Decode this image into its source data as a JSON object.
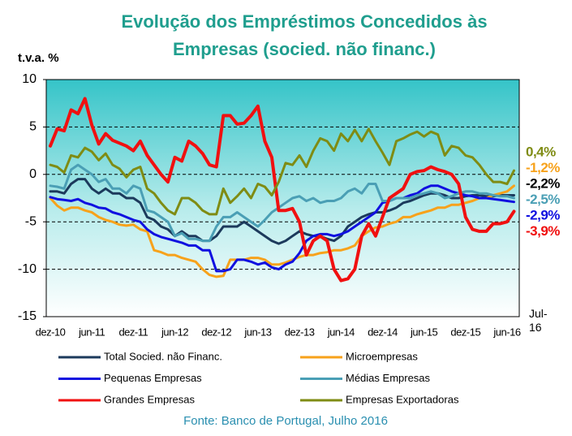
{
  "chart_data": {
    "type": "line",
    "title": [
      "Evolução dos Empréstimos Concedidos às",
      "Empresas (socied. não financ.)"
    ],
    "y_label": "t.v.a. %",
    "source": "Fonte: Banco de Portugal,  Julho 2016",
    "categories": [
      "dez-10",
      null,
      null,
      null,
      null,
      null,
      "jun-11",
      null,
      null,
      null,
      null,
      null,
      "dez-11",
      null,
      null,
      null,
      null,
      null,
      "jun-12",
      null,
      null,
      null,
      null,
      null,
      "dez-12",
      null,
      null,
      null,
      null,
      null,
      "jun-13",
      null,
      null,
      null,
      null,
      null,
      "dez-13",
      null,
      null,
      null,
      null,
      null,
      "jun-14",
      null,
      null,
      null,
      null,
      null,
      "dez-14",
      null,
      null,
      null,
      null,
      null,
      "jun-15",
      null,
      null,
      null,
      null,
      null,
      "dez-15",
      null,
      null,
      null,
      null,
      null,
      "jun-16",
      "Jul-16"
    ],
    "ylim": [
      -15,
      10
    ],
    "yticks": [
      -15,
      -10,
      -5,
      0,
      5,
      10
    ],
    "grid": true,
    "series": [
      {
        "name": "Total Socied. não Financ.",
        "color": "#1c3a5c",
        "end_label": "-2,2%",
        "values": [
          -1.8,
          -1.8,
          -2.0,
          -1.0,
          -0.5,
          -0.5,
          -1.5,
          -2.0,
          -1.5,
          -2.0,
          -2.0,
          -2.5,
          -2.5,
          -3.0,
          -4.5,
          -4.8,
          -5.5,
          -5.8,
          -6.5,
          -6.0,
          -6.5,
          -6.5,
          -7.0,
          -7.0,
          -6.5,
          -5.5,
          -5.5,
          -5.5,
          -5.0,
          -5.5,
          -6.0,
          -6.5,
          -7.0,
          -7.3,
          -7.0,
          -6.5,
          -6.0,
          -6.3,
          -6.5,
          -6.5,
          -6.8,
          -7.0,
          -6.5,
          -5.5,
          -5.0,
          -4.5,
          -4.2,
          -4.0,
          -4.0,
          -3.8,
          -3.5,
          -3.0,
          -2.8,
          -2.5,
          -2.2,
          -2.0,
          -2.0,
          -2.2,
          -2.5,
          -2.5,
          -2.3,
          -2.2,
          -2.2,
          -2.3,
          -2.3,
          -2.2,
          -2.2,
          -2.2
        ]
      },
      {
        "name": "Microempresas",
        "color": "#f7a21b",
        "end_label": "-1,2%",
        "values": [
          -2.5,
          -3.3,
          -3.8,
          -3.5,
          -3.5,
          -3.8,
          -4.0,
          -4.5,
          -4.8,
          -5.0,
          -5.3,
          -5.4,
          -5.3,
          -5.8,
          -6.0,
          -8.0,
          -8.2,
          -8.5,
          -8.5,
          -8.8,
          -9.0,
          -9.2,
          -10.0,
          -10.6,
          -10.8,
          -10.7,
          -9.0,
          -9.0,
          -9.0,
          -8.8,
          -8.8,
          -9.0,
          -9.5,
          -9.5,
          -9.3,
          -9.0,
          -8.7,
          -8.5,
          -8.5,
          -8.3,
          -8.2,
          -8.0,
          -8.0,
          -7.8,
          -7.5,
          -6.5,
          -6.0,
          -5.6,
          -5.5,
          -5.2,
          -5.0,
          -4.5,
          -4.5,
          -4.2,
          -4.0,
          -3.8,
          -3.5,
          -3.5,
          -3.2,
          -3.2,
          -3.0,
          -2.8,
          -2.5,
          -2.5,
          -2.2,
          -2.0,
          -1.8,
          -1.2
        ]
      },
      {
        "name": "Pequenas Empresas",
        "color": "#1010e0",
        "end_label": "-2,9%",
        "values": [
          -2.4,
          -2.6,
          -2.7,
          -2.8,
          -2.6,
          -3.0,
          -3.2,
          -3.5,
          -3.6,
          -4.0,
          -4.2,
          -4.5,
          -4.8,
          -5.0,
          -5.8,
          -6.3,
          -6.6,
          -6.8,
          -7.0,
          -7.2,
          -7.5,
          -7.5,
          -8.0,
          -8.0,
          -10.2,
          -10.2,
          -10.0,
          -9.0,
          -9.0,
          -9.2,
          -9.5,
          -9.3,
          -9.8,
          -10.0,
          -9.5,
          -9.2,
          -8.3,
          -7.0,
          -6.5,
          -6.3,
          -6.3,
          -6.5,
          -6.3,
          -6.0,
          -5.5,
          -5.0,
          -4.5,
          -4.0,
          -3.0,
          -2.8,
          -2.5,
          -2.5,
          -2.2,
          -2.0,
          -1.5,
          -1.2,
          -1.2,
          -1.5,
          -1.8,
          -2.0,
          -2.2,
          -2.3,
          -2.5,
          -2.5,
          -2.6,
          -2.7,
          -2.8,
          -2.9
        ]
      },
      {
        "name": "Médias Empresas",
        "color": "#4a9fb5",
        "end_label": "-2,5%",
        "values": [
          -1.2,
          -1.3,
          -1.5,
          0.5,
          1.0,
          0.5,
          0.0,
          -0.8,
          -0.5,
          -1.5,
          -1.5,
          -2.0,
          -1.2,
          -1.5,
          -3.8,
          -4.0,
          -4.5,
          -5.0,
          -6.5,
          -6.2,
          -6.8,
          -6.8,
          -7.0,
          -7.0,
          -5.5,
          -4.5,
          -4.5,
          -4.0,
          -4.5,
          -5.0,
          -5.5,
          -4.8,
          -4.0,
          -3.5,
          -3.0,
          -2.5,
          -2.3,
          -2.8,
          -2.5,
          -3.0,
          -2.8,
          -2.8,
          -2.5,
          -1.8,
          -1.5,
          -2.0,
          -1.0,
          -1.0,
          -2.8,
          -2.8,
          -2.5,
          -2.5,
          -2.5,
          -2.2,
          -2.0,
          -1.8,
          -2.0,
          -2.5,
          -2.3,
          -2.0,
          -1.8,
          -1.8,
          -2.0,
          -2.0,
          -2.2,
          -2.3,
          -2.3,
          -2.5
        ]
      },
      {
        "name": "Grandes Empresas",
        "color": "#f01010",
        "end_label": "-3,9%",
        "values": [
          3.0,
          4.8,
          4.6,
          6.8,
          6.4,
          8.0,
          5.2,
          3.2,
          4.3,
          3.6,
          3.3,
          3.0,
          2.5,
          3.5,
          2.0,
          1.0,
          0.0,
          -0.8,
          1.8,
          1.4,
          3.5,
          3.0,
          2.2,
          1.0,
          0.8,
          6.2,
          6.2,
          5.3,
          5.4,
          6.2,
          7.2,
          3.5,
          1.8,
          -3.8,
          -3.8,
          -3.6,
          -5.0,
          -8.5,
          -7.0,
          -6.5,
          -7.0,
          -10.0,
          -11.2,
          -11.0,
          -10.0,
          -6.5,
          -5.2,
          -6.5,
          -4.5,
          -2.5,
          -2.0,
          -1.5,
          0.0,
          0.3,
          0.4,
          0.8,
          0.5,
          0.3,
          0.0,
          -1.0,
          -4.5,
          -5.8,
          -6.0,
          -6.0,
          -5.2,
          -5.2,
          -5.0,
          -3.9
        ]
      },
      {
        "name": "Empresas Exportadoras",
        "color": "#7f8c14",
        "end_label": "0,4%",
        "values": [
          1.0,
          0.8,
          0.2,
          2.0,
          1.8,
          2.8,
          2.4,
          1.5,
          2.2,
          1.0,
          0.6,
          -0.3,
          0.5,
          0.8,
          -1.5,
          -2.0,
          -3.0,
          -3.8,
          -4.2,
          -2.5,
          -2.5,
          -3.0,
          -3.8,
          -4.2,
          -4.2,
          -1.5,
          -3.0,
          -2.3,
          -1.5,
          -2.5,
          -1.0,
          -1.3,
          -2.2,
          -0.8,
          1.2,
          1.0,
          2.0,
          0.8,
          2.5,
          3.8,
          3.5,
          2.5,
          4.3,
          3.5,
          4.7,
          3.5,
          4.8,
          3.5,
          2.3,
          1.0,
          3.5,
          3.8,
          4.2,
          4.5,
          4.0,
          4.5,
          4.2,
          2.0,
          3.0,
          2.8,
          2.0,
          1.8,
          1.0,
          0.0,
          -0.8,
          -0.8,
          -1.0,
          0.4
        ]
      }
    ]
  }
}
